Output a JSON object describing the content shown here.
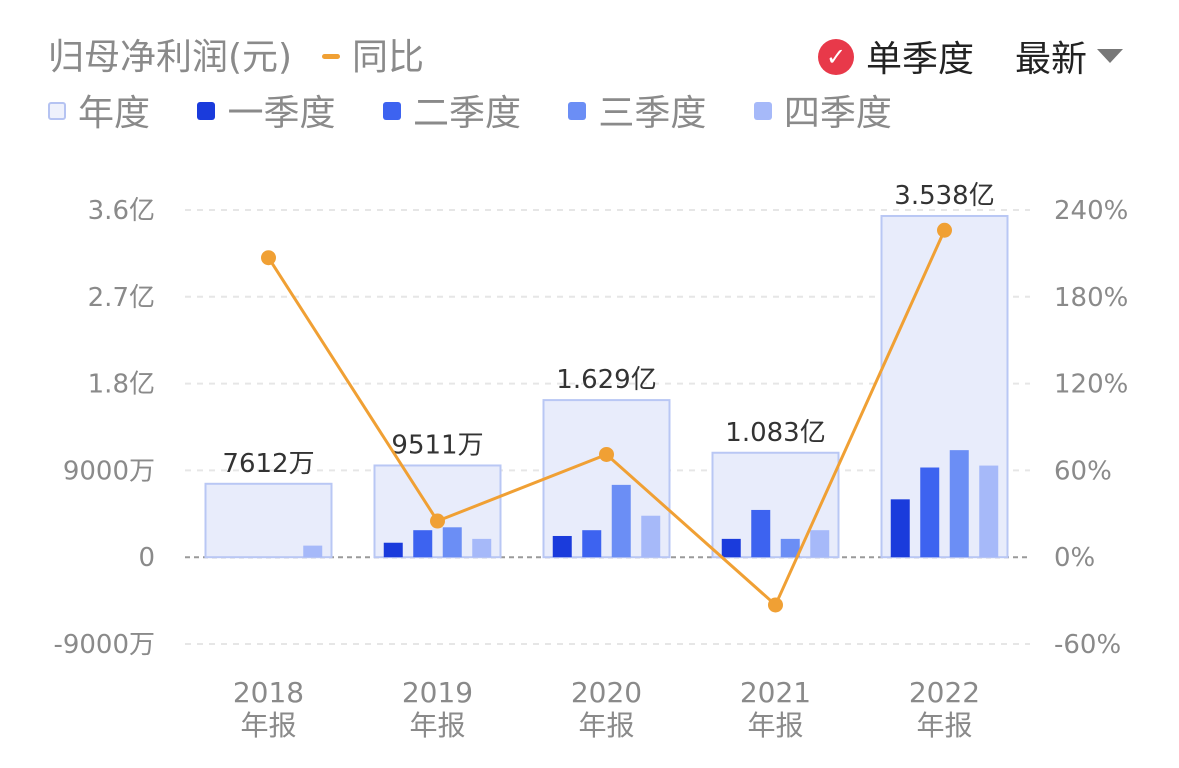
{
  "header": {
    "title": "归母净利润(元)",
    "yoy_label": "同比",
    "single_quarter_label": "单季度",
    "single_quarter_checked_icon": "check-icon",
    "latest_label": "最新",
    "dropdown_icon": "caret-down-icon"
  },
  "legend": {
    "items": [
      {
        "label": "年度",
        "color": "#e8ecfb"
      },
      {
        "label": "一季度",
        "color": "#1a3bdc"
      },
      {
        "label": "二季度",
        "color": "#3d63f0"
      },
      {
        "label": "三季度",
        "color": "#6b8ef5"
      },
      {
        "label": "四季度",
        "color": "#a6b9f9"
      }
    ]
  },
  "chart_data": {
    "type": "bar",
    "categories": [
      "2018\n年报",
      "2019\n年报",
      "2020\n年报",
      "2021\n年报",
      "2022\n年报"
    ],
    "series": [
      {
        "name": "年度",
        "values": [
          76120000,
          95110000,
          162900000,
          108300000,
          353800000
        ],
        "color": "#e8ecfb"
      },
      {
        "name": "一季度",
        "values": [
          0,
          15000000,
          22000000,
          19000000,
          60000000
        ],
        "color": "#1a3bdc"
      },
      {
        "name": "二季度",
        "values": [
          0,
          28000000,
          28000000,
          49000000,
          93000000
        ],
        "color": "#3d63f0"
      },
      {
        "name": "三季度",
        "values": [
          0,
          31000000,
          75000000,
          19000000,
          111000000
        ],
        "color": "#6b8ef5"
      },
      {
        "name": "四季度",
        "values": [
          12000000,
          19000000,
          43000000,
          28000000,
          95000000
        ],
        "color": "#a6b9f9"
      }
    ],
    "annual_labels": [
      "7612万",
      "9511万",
      "1.629亿",
      "1.083亿",
      "3.538亿"
    ],
    "yoy": {
      "name": "同比",
      "values": [
        207,
        25,
        71,
        -33,
        226
      ],
      "color": "#f0a034"
    },
    "y_left": {
      "ticks": [
        360000000,
        270000000,
        180000000,
        90000000,
        0,
        -90000000
      ],
      "tick_labels": [
        "3.6亿",
        "2.7亿",
        "1.8亿",
        "9000万",
        "0",
        "-9000万"
      ],
      "ylim": [
        -90000000,
        360000000
      ]
    },
    "y_right": {
      "ticks": [
        240,
        180,
        120,
        60,
        0,
        -60
      ],
      "tick_labels": [
        "240%",
        "180%",
        "120%",
        "60%",
        "0%",
        "-60%"
      ],
      "ylim": [
        -60,
        240
      ]
    },
    "grid": true,
    "legend_position": "top-left"
  }
}
